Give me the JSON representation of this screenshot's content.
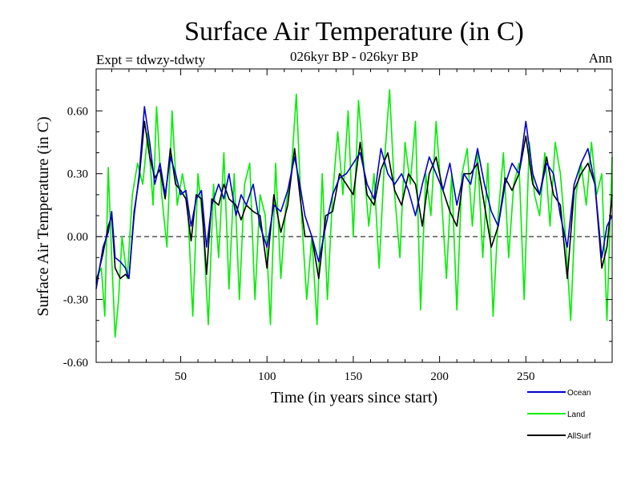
{
  "chart_data": {
    "type": "line",
    "title": "Surface Air Temperature (in C)",
    "subtitle": "026kyr BP - 026kyr BP",
    "expt_label": "Expt = tdwzy-tdwty",
    "season_label": "Ann",
    "xlabel": "Time (in years since start)",
    "ylabel": "Surface Air Temperature (in C)",
    "xlim": [
      1,
      300
    ],
    "ylim": [
      -0.6,
      0.8
    ],
    "xticks": [
      50,
      100,
      150,
      200,
      250
    ],
    "yticks": [
      -0.6,
      -0.3,
      0.0,
      0.3,
      0.6
    ],
    "ytick_labels": [
      "-0.60",
      "-0.30",
      "0.00",
      "0.30",
      "0.60"
    ],
    "zero_line": "dashed",
    "legend_position": "bottom-right",
    "series": [
      {
        "name": "Ocean",
        "color": "#0000cc",
        "points": [
          [
            1,
            -0.25
          ],
          [
            5,
            -0.05
          ],
          [
            8,
            0.02
          ],
          [
            10,
            0.12
          ],
          [
            12,
            -0.1
          ],
          [
            15,
            -0.12
          ],
          [
            18,
            -0.15
          ],
          [
            20,
            -0.2
          ],
          [
            23,
            0.1
          ],
          [
            26,
            0.3
          ],
          [
            29,
            0.62
          ],
          [
            32,
            0.45
          ],
          [
            35,
            0.25
          ],
          [
            38,
            0.35
          ],
          [
            41,
            0.2
          ],
          [
            44,
            0.38
          ],
          [
            47,
            0.3
          ],
          [
            50,
            0.2
          ],
          [
            53,
            0.22
          ],
          [
            56,
            0.05
          ],
          [
            59,
            0.18
          ],
          [
            62,
            0.22
          ],
          [
            65,
            -0.05
          ],
          [
            68,
            0.15
          ],
          [
            72,
            0.25
          ],
          [
            75,
            0.18
          ],
          [
            78,
            0.3
          ],
          [
            82,
            0.1
          ],
          [
            85,
            0.2
          ],
          [
            88,
            0.15
          ],
          [
            92,
            0.25
          ],
          [
            96,
            0.05
          ],
          [
            100,
            -0.05
          ],
          [
            104,
            0.15
          ],
          [
            108,
            0.12
          ],
          [
            112,
            0.22
          ],
          [
            116,
            0.38
          ],
          [
            119,
            0.25
          ],
          [
            122,
            0.1
          ],
          [
            126,
            0.0
          ],
          [
            130,
            -0.12
          ],
          [
            134,
            0.05
          ],
          [
            138,
            0.2
          ],
          [
            142,
            0.28
          ],
          [
            146,
            0.3
          ],
          [
            150,
            0.35
          ],
          [
            154,
            0.4
          ],
          [
            158,
            0.25
          ],
          [
            162,
            0.18
          ],
          [
            166,
            0.42
          ],
          [
            170,
            0.3
          ],
          [
            174,
            0.25
          ],
          [
            178,
            0.3
          ],
          [
            182,
            0.22
          ],
          [
            186,
            0.1
          ],
          [
            190,
            0.25
          ],
          [
            194,
            0.38
          ],
          [
            198,
            0.3
          ],
          [
            202,
            0.22
          ],
          [
            206,
            0.35
          ],
          [
            210,
            0.15
          ],
          [
            214,
            0.3
          ],
          [
            218,
            0.25
          ],
          [
            222,
            0.42
          ],
          [
            226,
            0.25
          ],
          [
            230,
            0.12
          ],
          [
            234,
            0.05
          ],
          [
            238,
            0.25
          ],
          [
            242,
            0.35
          ],
          [
            246,
            0.3
          ],
          [
            250,
            0.55
          ],
          [
            254,
            0.3
          ],
          [
            258,
            0.2
          ],
          [
            262,
            0.35
          ],
          [
            266,
            0.3
          ],
          [
            270,
            0.1
          ],
          [
            274,
            -0.05
          ],
          [
            278,
            0.25
          ],
          [
            282,
            0.35
          ],
          [
            286,
            0.42
          ],
          [
            290,
            0.25
          ],
          [
            294,
            -0.1
          ],
          [
            297,
            0.05
          ],
          [
            300,
            0.1
          ]
        ]
      },
      {
        "name": "Land",
        "color": "#00ee00",
        "points": [
          [
            1,
            -0.2
          ],
          [
            4,
            -0.15
          ],
          [
            6,
            -0.38
          ],
          [
            8,
            0.33
          ],
          [
            10,
            -0.1
          ],
          [
            12,
            -0.48
          ],
          [
            14,
            -0.3
          ],
          [
            16,
            0.0
          ],
          [
            19,
            -0.2
          ],
          [
            22,
            0.2
          ],
          [
            25,
            0.35
          ],
          [
            28,
            0.25
          ],
          [
            31,
            0.5
          ],
          [
            34,
            0.15
          ],
          [
            36,
            0.62
          ],
          [
            39,
            0.2
          ],
          [
            42,
            -0.05
          ],
          [
            45,
            0.6
          ],
          [
            48,
            0.15
          ],
          [
            51,
            0.3
          ],
          [
            54,
            0.15
          ],
          [
            57,
            -0.38
          ],
          [
            60,
            0.3
          ],
          [
            63,
            0.05
          ],
          [
            66,
            -0.42
          ],
          [
            69,
            0.25
          ],
          [
            72,
            -0.1
          ],
          [
            75,
            0.4
          ],
          [
            78,
            -0.25
          ],
          [
            81,
            0.3
          ],
          [
            84,
            -0.3
          ],
          [
            87,
            0.25
          ],
          [
            90,
            0.35
          ],
          [
            93,
            -0.3
          ],
          [
            96,
            0.2
          ],
          [
            99,
            0.1
          ],
          [
            102,
            -0.42
          ],
          [
            105,
            0.35
          ],
          [
            108,
            -0.2
          ],
          [
            111,
            0.15
          ],
          [
            114,
            0.3
          ],
          [
            117,
            0.68
          ],
          [
            120,
            0.1
          ],
          [
            123,
            -0.3
          ],
          [
            126,
            0.0
          ],
          [
            129,
            -0.42
          ],
          [
            132,
            0.3
          ],
          [
            135,
            -0.3
          ],
          [
            138,
            0.2
          ],
          [
            141,
            0.5
          ],
          [
            144,
            0.2
          ],
          [
            147,
            0.6
          ],
          [
            150,
            0.0
          ],
          [
            153,
            0.65
          ],
          [
            156,
            0.35
          ],
          [
            159,
            0.05
          ],
          [
            162,
            0.3
          ],
          [
            165,
            -0.15
          ],
          [
            168,
            0.35
          ],
          [
            171,
            0.7
          ],
          [
            174,
            0.2
          ],
          [
            177,
            -0.1
          ],
          [
            180,
            0.45
          ],
          [
            183,
            0.25
          ],
          [
            186,
            0.55
          ],
          [
            189,
            -0.35
          ],
          [
            192,
            0.3
          ],
          [
            195,
            0.1
          ],
          [
            198,
            0.55
          ],
          [
            201,
            0.2
          ],
          [
            204,
            -0.2
          ],
          [
            207,
            0.3
          ],
          [
            210,
            -0.35
          ],
          [
            213,
            0.3
          ],
          [
            216,
            0.42
          ],
          [
            219,
            0.05
          ],
          [
            222,
            0.4
          ],
          [
            225,
            -0.1
          ],
          [
            228,
            0.35
          ],
          [
            231,
            -0.38
          ],
          [
            234,
            0.1
          ],
          [
            237,
            0.4
          ],
          [
            240,
            -0.1
          ],
          [
            243,
            0.25
          ],
          [
            246,
            0.35
          ],
          [
            249,
            -0.3
          ],
          [
            252,
            0.45
          ],
          [
            255,
            0.2
          ],
          [
            258,
            0.1
          ],
          [
            261,
            0.4
          ],
          [
            264,
            0.05
          ],
          [
            267,
            0.45
          ],
          [
            270,
            0.3
          ],
          [
            273,
            0.0
          ],
          [
            276,
            -0.4
          ],
          [
            279,
            0.2
          ],
          [
            282,
            0.35
          ],
          [
            285,
            0.15
          ],
          [
            288,
            0.45
          ],
          [
            291,
            0.2
          ],
          [
            294,
            0.3
          ],
          [
            297,
            -0.4
          ],
          [
            300,
            0.38
          ]
        ]
      },
      {
        "name": "AllSurf",
        "color": "#000000",
        "points": [
          [
            1,
            -0.22
          ],
          [
            5,
            -0.08
          ],
          [
            8,
            0.05
          ],
          [
            10,
            0.1
          ],
          [
            12,
            -0.15
          ],
          [
            15,
            -0.2
          ],
          [
            18,
            -0.18
          ],
          [
            20,
            -0.2
          ],
          [
            23,
            0.12
          ],
          [
            26,
            0.28
          ],
          [
            29,
            0.55
          ],
          [
            32,
            0.38
          ],
          [
            35,
            0.28
          ],
          [
            38,
            0.32
          ],
          [
            41,
            0.18
          ],
          [
            44,
            0.42
          ],
          [
            47,
            0.25
          ],
          [
            50,
            0.22
          ],
          [
            53,
            0.18
          ],
          [
            56,
            -0.02
          ],
          [
            59,
            0.2
          ],
          [
            62,
            0.18
          ],
          [
            65,
            -0.18
          ],
          [
            68,
            0.18
          ],
          [
            72,
            0.15
          ],
          [
            75,
            0.25
          ],
          [
            78,
            0.18
          ],
          [
            82,
            0.15
          ],
          [
            85,
            0.08
          ],
          [
            88,
            0.15
          ],
          [
            92,
            0.12
          ],
          [
            96,
            0.1
          ],
          [
            100,
            -0.15
          ],
          [
            104,
            0.2
          ],
          [
            108,
            0.02
          ],
          [
            112,
            0.15
          ],
          [
            116,
            0.42
          ],
          [
            119,
            0.2
          ],
          [
            122,
            0.0
          ],
          [
            126,
            0.0
          ],
          [
            130,
            -0.2
          ],
          [
            134,
            0.1
          ],
          [
            138,
            0.12
          ],
          [
            142,
            0.3
          ],
          [
            146,
            0.25
          ],
          [
            150,
            0.2
          ],
          [
            154,
            0.45
          ],
          [
            158,
            0.2
          ],
          [
            162,
            0.15
          ],
          [
            166,
            0.32
          ],
          [
            170,
            0.4
          ],
          [
            174,
            0.22
          ],
          [
            178,
            0.15
          ],
          [
            182,
            0.3
          ],
          [
            186,
            0.25
          ],
          [
            190,
            0.05
          ],
          [
            194,
            0.3
          ],
          [
            198,
            0.38
          ],
          [
            202,
            0.22
          ],
          [
            206,
            0.12
          ],
          [
            210,
            0.05
          ],
          [
            214,
            0.3
          ],
          [
            218,
            0.3
          ],
          [
            222,
            0.35
          ],
          [
            226,
            0.15
          ],
          [
            230,
            -0.05
          ],
          [
            234,
            0.05
          ],
          [
            238,
            0.28
          ],
          [
            242,
            0.22
          ],
          [
            246,
            0.3
          ],
          [
            250,
            0.48
          ],
          [
            254,
            0.25
          ],
          [
            258,
            0.2
          ],
          [
            262,
            0.38
          ],
          [
            266,
            0.2
          ],
          [
            270,
            0.15
          ],
          [
            274,
            -0.2
          ],
          [
            278,
            0.22
          ],
          [
            282,
            0.3
          ],
          [
            286,
            0.35
          ],
          [
            290,
            0.25
          ],
          [
            294,
            -0.15
          ],
          [
            297,
            -0.05
          ],
          [
            300,
            0.2
          ]
        ]
      }
    ]
  }
}
